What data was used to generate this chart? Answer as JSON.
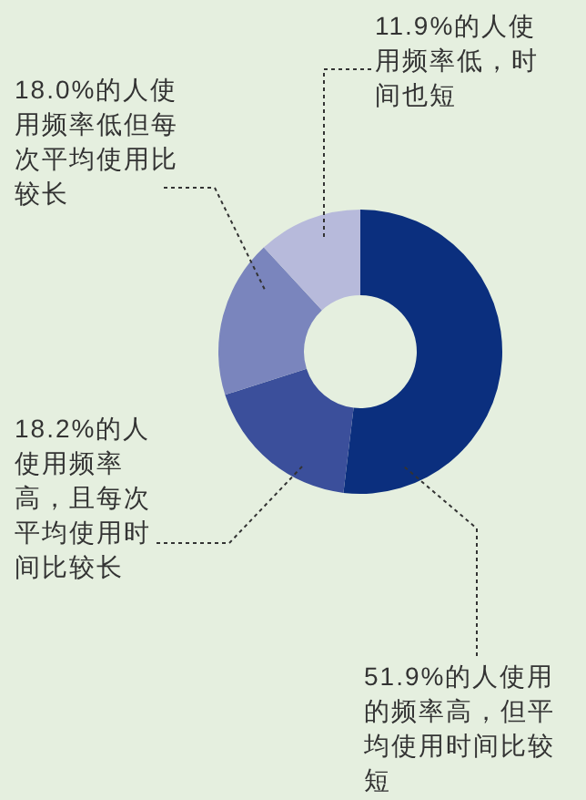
{
  "chart_data": {
    "type": "donut",
    "categories": [
      "51.9%的人使用的频率高，但平均使用时间比较短",
      "18.2%的人使用频率高，且每次平均使用时间比较长",
      "18.0%的人使用频率低但每次平均使用比较长",
      "11.9%的人使用频率低，时间也短"
    ],
    "values": [
      51.9,
      18.2,
      18.0,
      11.9
    ],
    "colors": [
      "#0b2f7e",
      "#3b4f9b",
      "#7a85bd",
      "#b7badb"
    ]
  }
}
